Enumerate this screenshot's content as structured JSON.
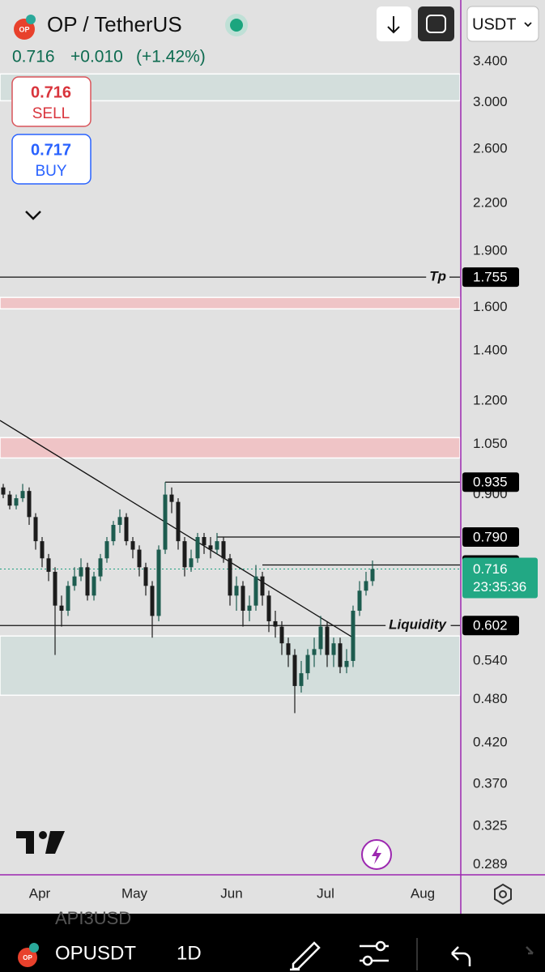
{
  "header": {
    "symbol": "OP / TetherUS",
    "logo": "OP",
    "price": "0.716",
    "change": "+0.010",
    "change_pct": "(+1.42%)",
    "currency": "USDT"
  },
  "sell": {
    "price": "0.716",
    "label": "SELL"
  },
  "buy": {
    "price": "0.717",
    "label": "BUY"
  },
  "chart_data": {
    "type": "candlestick",
    "log_scale": true,
    "grid": false,
    "ylim": [
      0.28,
      4.11
    ],
    "yticks": [
      {
        "value": 3.4,
        "label": "3.400"
      },
      {
        "value": 3.0,
        "label": "3.000"
      },
      {
        "value": 2.6,
        "label": "2.600"
      },
      {
        "value": 2.2,
        "label": "2.200"
      },
      {
        "value": 1.9,
        "label": "1.900"
      },
      {
        "value": 1.6,
        "label": "1.600"
      },
      {
        "value": 1.4,
        "label": "1.400"
      },
      {
        "value": 1.2,
        "label": "1.200"
      },
      {
        "value": 1.05,
        "label": "1.050"
      },
      {
        "value": 0.9,
        "label": "0.900"
      },
      {
        "value": 0.54,
        "label": "0.540"
      },
      {
        "value": 0.48,
        "label": "0.480"
      },
      {
        "value": 0.42,
        "label": "0.420"
      },
      {
        "value": 0.37,
        "label": "0.370"
      },
      0.325,
      0.289
    ],
    "x_labels": [
      "Apr",
      "May",
      "Jun",
      "Jul",
      "Aug"
    ],
    "up_color": "#1d5c4f",
    "down_color": "#1c1c1c",
    "open": [
      0.92,
      0.9,
      0.87,
      0.89,
      0.91,
      0.84,
      0.78,
      0.74,
      0.71,
      0.64,
      0.63,
      0.68,
      0.7,
      0.72,
      0.66,
      0.7,
      0.74,
      0.78,
      0.82,
      0.84,
      0.78,
      0.76,
      0.72,
      0.68,
      0.62,
      0.76,
      0.9,
      0.88,
      0.78,
      0.72,
      0.74,
      0.79,
      0.77,
      0.76,
      0.78,
      0.74,
      0.66,
      0.68,
      0.63,
      0.64,
      0.7,
      0.66,
      0.61,
      0.6,
      0.57,
      0.55,
      0.5,
      0.52,
      0.55,
      0.56,
      0.6,
      0.55,
      0.57,
      0.53,
      0.54,
      0.63,
      0.67,
      0.69
    ],
    "high": [
      0.93,
      0.91,
      0.9,
      0.93,
      0.92,
      0.85,
      0.79,
      0.75,
      0.72,
      0.66,
      0.69,
      0.72,
      0.74,
      0.73,
      0.71,
      0.75,
      0.79,
      0.83,
      0.86,
      0.85,
      0.79,
      0.77,
      0.73,
      0.69,
      0.77,
      0.935,
      0.92,
      0.89,
      0.79,
      0.76,
      0.8,
      0.8,
      0.79,
      0.8,
      0.79,
      0.75,
      0.7,
      0.69,
      0.66,
      0.725,
      0.71,
      0.67,
      0.63,
      0.61,
      0.58,
      0.56,
      0.54,
      0.56,
      0.58,
      0.62,
      0.61,
      0.58,
      0.58,
      0.56,
      0.64,
      0.69,
      0.71,
      0.735
    ],
    "low": [
      0.89,
      0.86,
      0.86,
      0.88,
      0.82,
      0.76,
      0.72,
      0.69,
      0.55,
      0.6,
      0.62,
      0.67,
      0.69,
      0.65,
      0.65,
      0.69,
      0.73,
      0.77,
      0.8,
      0.77,
      0.74,
      0.7,
      0.66,
      0.58,
      0.61,
      0.75,
      0.85,
      0.76,
      0.7,
      0.71,
      0.73,
      0.75,
      0.74,
      0.75,
      0.73,
      0.64,
      0.63,
      0.6,
      0.61,
      0.63,
      0.64,
      0.59,
      0.58,
      0.55,
      0.53,
      0.46,
      0.49,
      0.51,
      0.53,
      0.55,
      0.53,
      0.53,
      0.52,
      0.52,
      0.53,
      0.62,
      0.66,
      0.68
    ],
    "close": [
      0.9,
      0.87,
      0.89,
      0.91,
      0.84,
      0.78,
      0.74,
      0.71,
      0.64,
      0.63,
      0.68,
      0.7,
      0.72,
      0.66,
      0.7,
      0.74,
      0.78,
      0.82,
      0.84,
      0.78,
      0.76,
      0.72,
      0.68,
      0.62,
      0.76,
      0.9,
      0.88,
      0.78,
      0.72,
      0.74,
      0.79,
      0.77,
      0.76,
      0.78,
      0.74,
      0.66,
      0.68,
      0.63,
      0.64,
      0.7,
      0.66,
      0.61,
      0.6,
      0.57,
      0.55,
      0.5,
      0.52,
      0.55,
      0.56,
      0.6,
      0.55,
      0.57,
      0.53,
      0.54,
      0.63,
      0.67,
      0.69,
      0.716
    ],
    "zones": [
      {
        "color": "#d3dedc",
        "range": [
          3.016,
          3.275
        ]
      },
      {
        "color": "#efc4c6",
        "range": [
          1.592,
          1.649
        ]
      },
      {
        "color": "#efc4c6",
        "range": [
          1.007,
          1.072
        ]
      },
      {
        "color": "#d3dedc",
        "range": [
          0.486,
          0.583
        ]
      }
    ],
    "levels": [
      {
        "name": "Tp",
        "value": 1.755
      },
      {
        "value": 0.935
      },
      {
        "value": {
          "value": 0.79,
          "label": "0.790"
        }
      },
      {
        "value": 0.725
      },
      {
        "name": "Liquidity",
        "value": 0.602
      }
    ],
    "trendline": [
      1.13,
      0.58
    ],
    "last_price": 0.716,
    "countdown": "23:35:36"
  },
  "footer": {
    "previous": "API3USD",
    "symbol": "OPUSDT",
    "interval": "1D"
  }
}
